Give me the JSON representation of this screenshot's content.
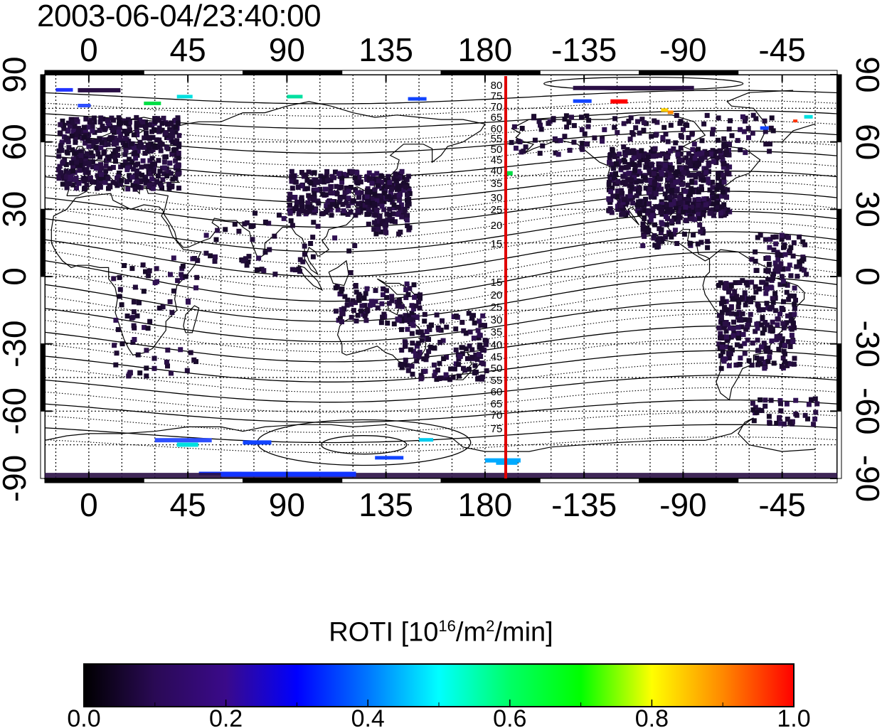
{
  "title": "2003-06-04/23:40:00",
  "map": {
    "lon_ticks": [
      "0",
      "45",
      "90",
      "135",
      "180",
      "-135",
      "-90",
      "-45"
    ],
    "lat_ticks": [
      "90",
      "60",
      "30",
      "0",
      "-30",
      "-60",
      "-90"
    ],
    "mlat_labels": [
      "80",
      "75",
      "70",
      "65",
      "60",
      "55",
      "50",
      "45",
      "40",
      "35",
      "30",
      "25",
      "20",
      "15",
      "15",
      "20",
      "25",
      "30",
      "35",
      "40",
      "45",
      "50",
      "55",
      "60",
      "65",
      "70",
      "75"
    ],
    "terminator_longitude": 185
  },
  "colorbar": {
    "label_main": "ROTI  [10",
    "label_exp1": "16",
    "label_mid": "/m",
    "label_exp2": "2",
    "label_end": "/min]",
    "ticks": [
      "0.0",
      "0.2",
      "0.4",
      "0.6",
      "0.8",
      "1.0"
    ],
    "range": [
      0.0,
      1.0
    ],
    "colormap": [
      "#000000",
      "#2a0a55",
      "#3a0a8a",
      "#0000ff",
      "#0077ff",
      "#00ffff",
      "#00ff66",
      "#00ff00",
      "#ffff00",
      "#ff8800",
      "#ff0000"
    ]
  }
}
